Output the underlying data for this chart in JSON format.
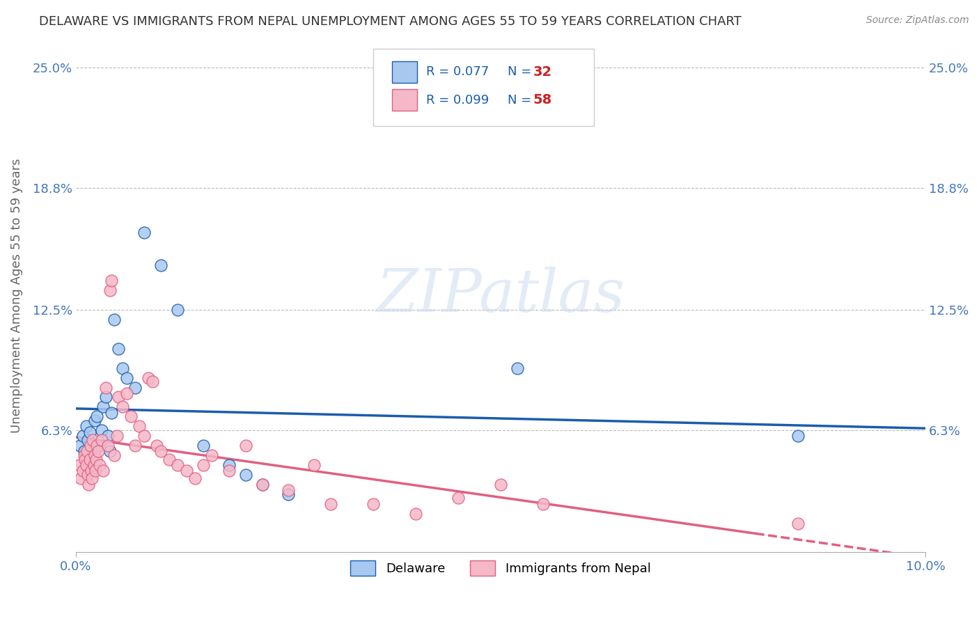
{
  "title": "DELAWARE VS IMMIGRANTS FROM NEPAL UNEMPLOYMENT AMONG AGES 55 TO 59 YEARS CORRELATION CHART",
  "source": "Source: ZipAtlas.com",
  "ylabel": "Unemployment Among Ages 55 to 59 years",
  "xlim": [
    0.0,
    10.0
  ],
  "ylim": [
    0.0,
    26.5
  ],
  "yticks": [
    0.0,
    6.3,
    12.5,
    18.8,
    25.0
  ],
  "ytick_labels": [
    "",
    "6.3%",
    "12.5%",
    "18.8%",
    "25.0%"
  ],
  "xtick_labels": [
    "0.0%",
    "10.0%"
  ],
  "xticks": [
    0.0,
    10.0
  ],
  "delaware_R": 0.077,
  "delaware_N": 32,
  "nepal_R": 0.099,
  "nepal_N": 58,
  "delaware_color": "#A8C8F0",
  "nepal_color": "#F5B8C8",
  "delaware_line_color": "#1A5DAD",
  "nepal_line_color": "#E06080",
  "background_color": "#FFFFFF",
  "grid_color": "#BBBBBB",
  "title_color": "#333333",
  "axis_label_color": "#666666",
  "tick_label_color": "#4477BB",
  "legend_text_color": "#1A5DAD",
  "legend_N_color": "#CC2222",
  "watermark_color": "#C8D8EE",
  "delaware_x": [
    0.05,
    0.08,
    0.1,
    0.12,
    0.14,
    0.16,
    0.18,
    0.2,
    0.22,
    0.25,
    0.28,
    0.3,
    0.32,
    0.35,
    0.38,
    0.4,
    0.42,
    0.45,
    0.5,
    0.55,
    0.6,
    0.7,
    0.8,
    1.0,
    1.2,
    1.5,
    1.8,
    2.0,
    2.2,
    2.5,
    5.2,
    8.5
  ],
  "delaware_y": [
    5.5,
    6.0,
    5.2,
    6.5,
    5.8,
    6.2,
    4.8,
    5.0,
    6.8,
    7.0,
    5.5,
    6.3,
    7.5,
    8.0,
    6.0,
    5.2,
    7.2,
    12.0,
    10.5,
    9.5,
    9.0,
    8.5,
    16.5,
    14.8,
    12.5,
    5.5,
    4.5,
    4.0,
    3.5,
    3.0,
    9.5,
    6.0
  ],
  "nepal_x": [
    0.04,
    0.06,
    0.08,
    0.1,
    0.11,
    0.12,
    0.13,
    0.14,
    0.15,
    0.16,
    0.17,
    0.18,
    0.19,
    0.2,
    0.21,
    0.22,
    0.23,
    0.24,
    0.25,
    0.26,
    0.28,
    0.3,
    0.32,
    0.35,
    0.38,
    0.4,
    0.42,
    0.45,
    0.48,
    0.5,
    0.55,
    0.6,
    0.65,
    0.7,
    0.75,
    0.8,
    0.85,
    0.9,
    0.95,
    1.0,
    1.1,
    1.2,
    1.3,
    1.4,
    1.5,
    1.6,
    1.8,
    2.0,
    2.2,
    2.5,
    2.8,
    3.0,
    3.5,
    4.0,
    4.5,
    5.0,
    5.5,
    8.5
  ],
  "nepal_y": [
    4.5,
    3.8,
    4.2,
    5.0,
    4.8,
    4.5,
    5.2,
    4.0,
    3.5,
    4.8,
    5.5,
    4.2,
    3.8,
    5.8,
    4.5,
    5.0,
    4.2,
    4.8,
    5.5,
    5.2,
    4.5,
    5.8,
    4.2,
    8.5,
    5.5,
    13.5,
    14.0,
    5.0,
    6.0,
    8.0,
    7.5,
    8.2,
    7.0,
    5.5,
    6.5,
    6.0,
    9.0,
    8.8,
    5.5,
    5.2,
    4.8,
    4.5,
    4.2,
    3.8,
    4.5,
    5.0,
    4.2,
    5.5,
    3.5,
    3.2,
    4.5,
    2.5,
    2.5,
    2.0,
    2.8,
    3.5,
    2.5,
    1.5
  ]
}
